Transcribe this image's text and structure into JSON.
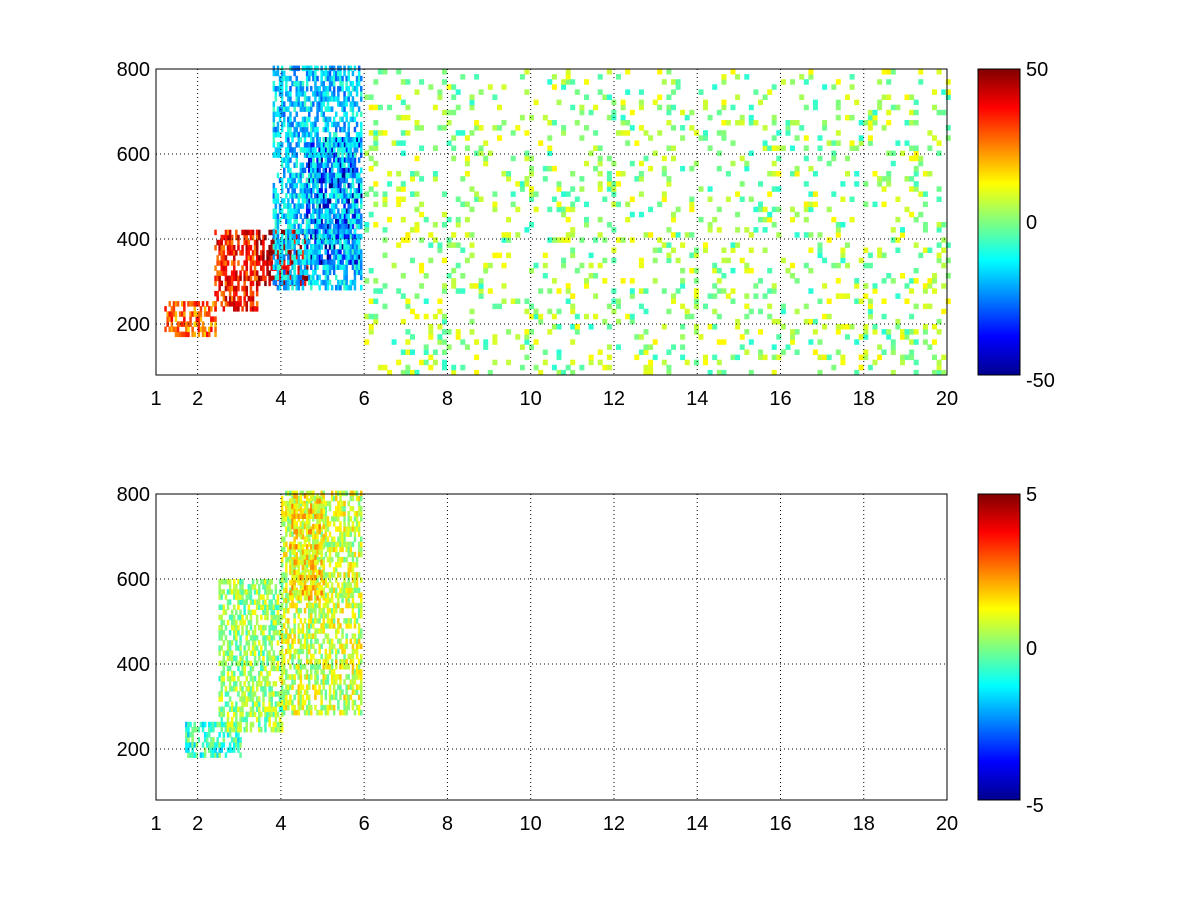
{
  "chart_data": [
    {
      "type": "heatmap",
      "title": "",
      "xlabel": "",
      "ylabel": "",
      "xlim": [
        1,
        20
      ],
      "ylim": [
        80,
        800
      ],
      "xticks": [
        1,
        2,
        4,
        6,
        8,
        10,
        12,
        14,
        16,
        18,
        20
      ],
      "xtick_labels": [
        "1",
        "2",
        "4",
        "6",
        "8",
        "10",
        "12",
        "14",
        "16",
        "18",
        "20"
      ],
      "yticks": [
        200,
        400,
        600,
        800
      ],
      "ytick_labels": [
        "200",
        "400",
        "600",
        "800"
      ],
      "grid": true,
      "colormap": "jet",
      "clim": [
        -50,
        50
      ],
      "colorbar_ticks": [
        -50,
        0,
        50
      ],
      "colorbar_labels": [
        "-50",
        "0",
        "50"
      ],
      "regions": [
        {
          "x": [
            1.2,
            2.4
          ],
          "y": [
            170,
            250
          ],
          "level": 0.55
        },
        {
          "x": [
            2.4,
            3.4
          ],
          "y": [
            230,
            420
          ],
          "level": 0.7
        },
        {
          "x": [
            3.4,
            4.6
          ],
          "y": [
            290,
            420
          ],
          "level": 0.85
        },
        {
          "x": [
            4.6,
            5.9
          ],
          "y": [
            340,
            640
          ],
          "level": -0.8
        },
        {
          "x": [
            3.8,
            5.9
          ],
          "y": [
            280,
            800
          ],
          "level": -0.35
        },
        {
          "x": [
            6.0,
            20.0
          ],
          "y": [
            80,
            800
          ],
          "level": 0.05
        }
      ]
    },
    {
      "type": "heatmap",
      "title": "",
      "xlabel": "",
      "ylabel": "",
      "xlim": [
        1,
        20
      ],
      "ylim": [
        80,
        800
      ],
      "xticks": [
        1,
        2,
        4,
        6,
        8,
        10,
        12,
        14,
        16,
        18,
        20
      ],
      "xtick_labels": [
        "1",
        "2",
        "4",
        "6",
        "8",
        "10",
        "12",
        "14",
        "16",
        "18",
        "20"
      ],
      "yticks": [
        200,
        400,
        600,
        800
      ],
      "ytick_labels": [
        "200",
        "400",
        "600",
        "800"
      ],
      "grid": true,
      "colormap": "jet",
      "clim": [
        -5,
        5
      ],
      "colorbar_ticks": [
        -5,
        0,
        5
      ],
      "colorbar_labels": [
        "-5",
        "0",
        "5"
      ],
      "regions": [
        {
          "x": [
            1.7,
            3.0
          ],
          "y": [
            180,
            260
          ],
          "level": -0.15
        },
        {
          "x": [
            2.5,
            4.0
          ],
          "y": [
            240,
            600
          ],
          "level": 0.05
        },
        {
          "x": [
            4.0,
            5.9
          ],
          "y": [
            280,
            800
          ],
          "level": 0.15
        },
        {
          "x": [
            4.2,
            5.0
          ],
          "y": [
            550,
            800
          ],
          "level": 0.3
        }
      ]
    }
  ]
}
